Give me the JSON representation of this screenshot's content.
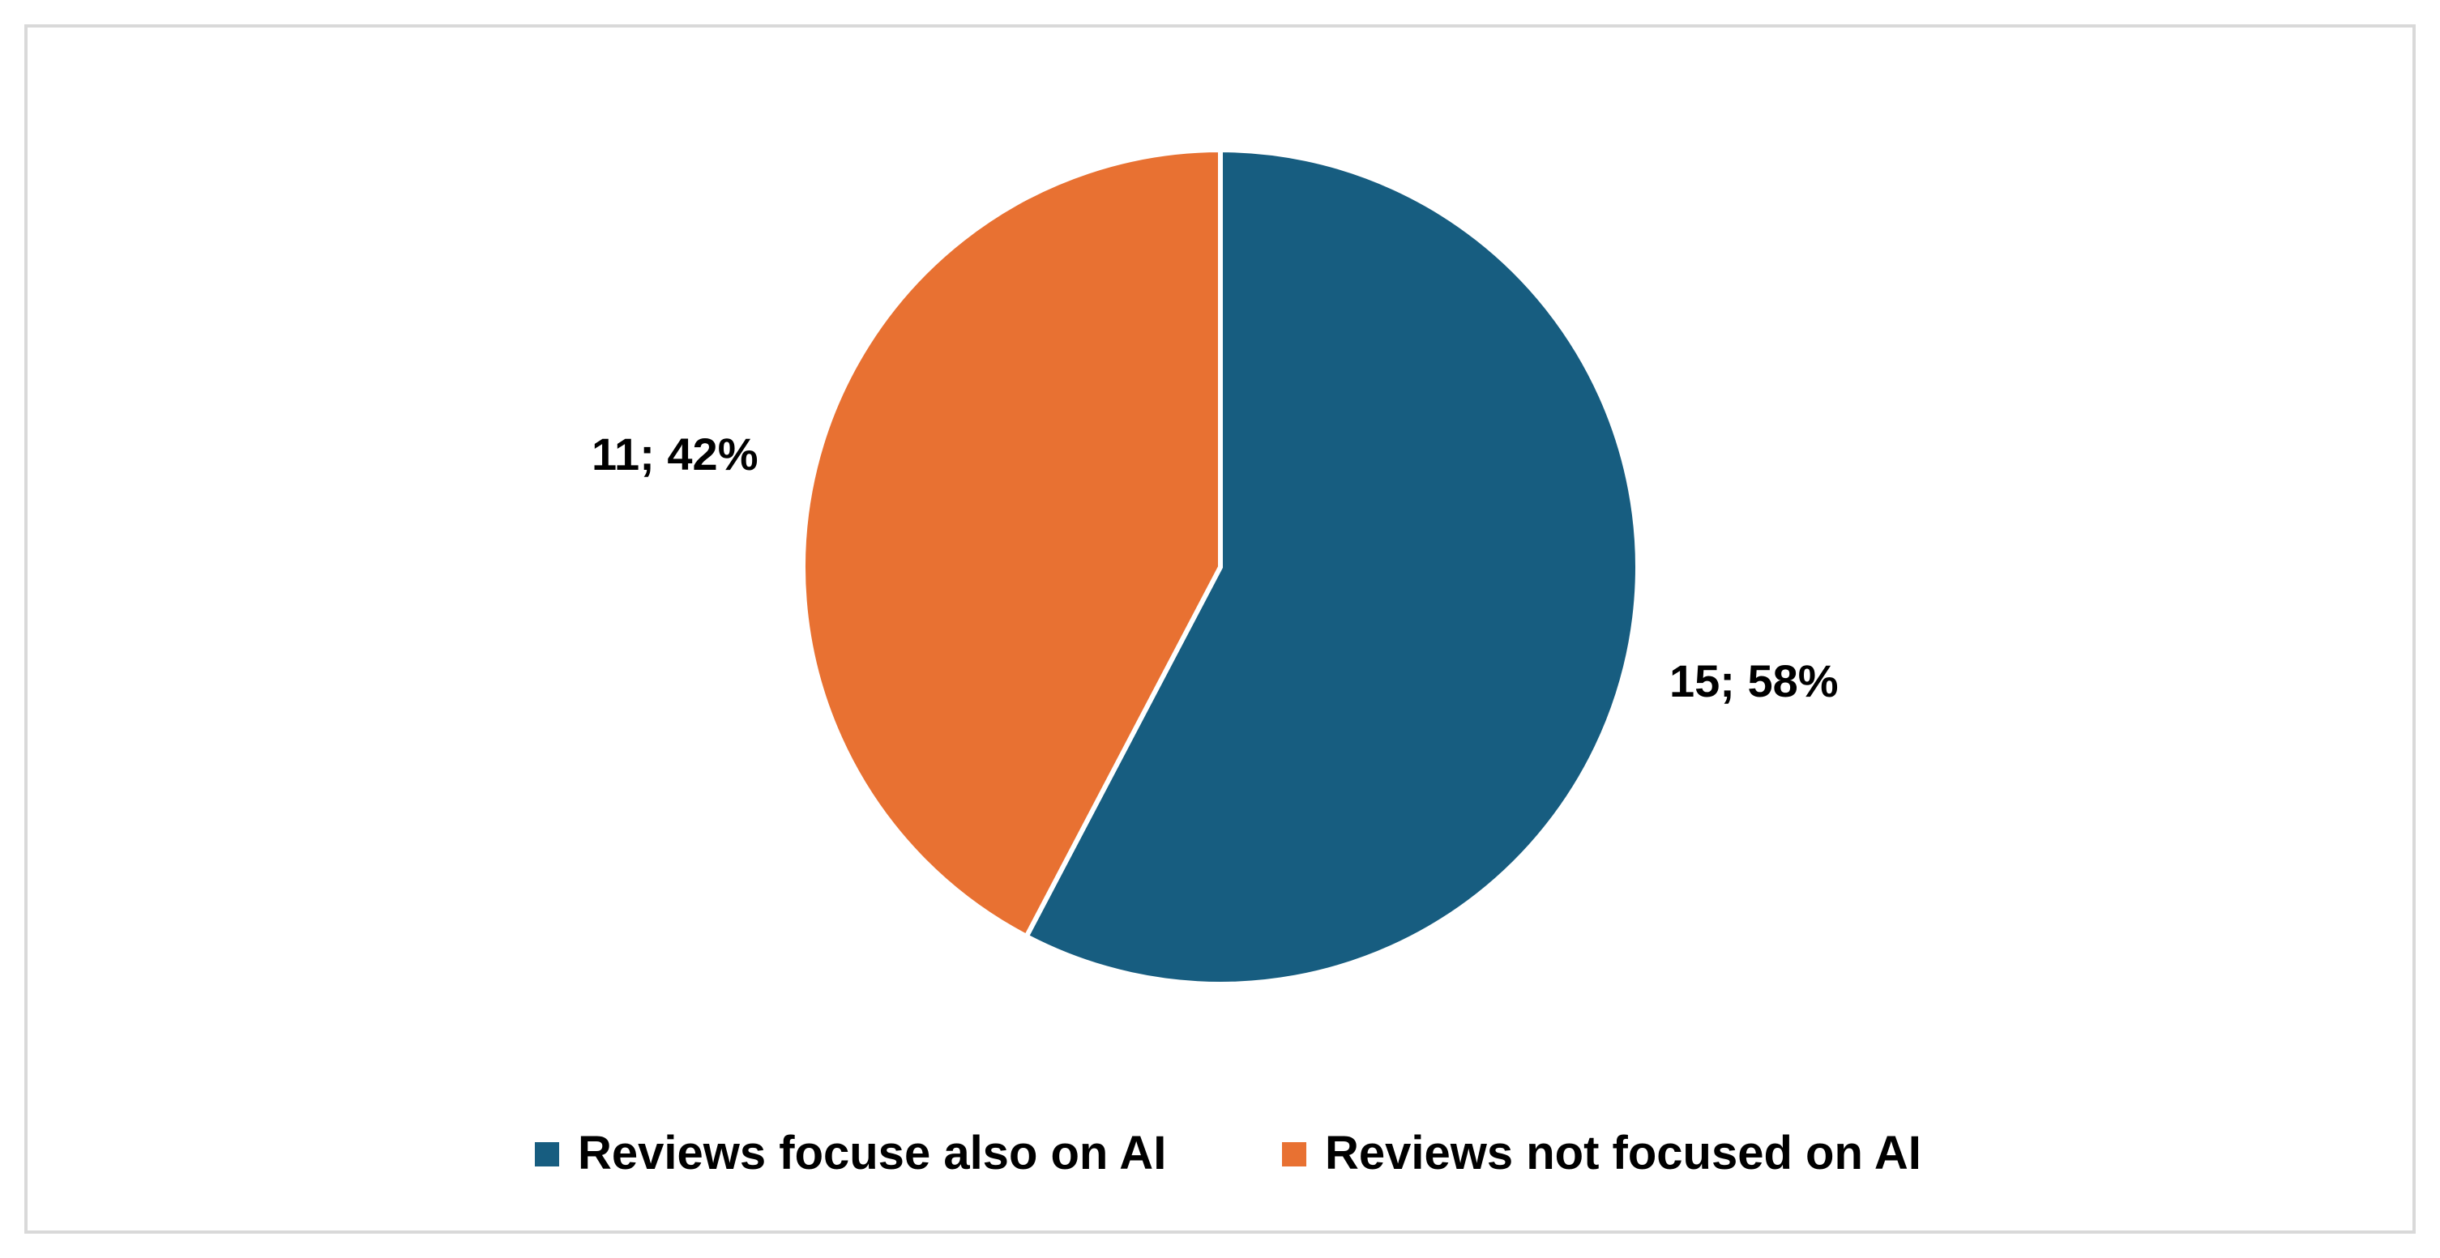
{
  "chart_data": {
    "type": "pie",
    "title": "",
    "categories": [
      "Reviews focuse also on AI",
      "Reviews not focused on AI"
    ],
    "values": [
      15,
      11
    ],
    "percentages": [
      58,
      42
    ],
    "data_labels": [
      "15; 58%",
      "11; 42%"
    ],
    "colors": [
      "#175d80",
      "#e87132"
    ],
    "start_angle": "12 o'clock",
    "direction": "clockwise",
    "legend_position": "bottom"
  }
}
